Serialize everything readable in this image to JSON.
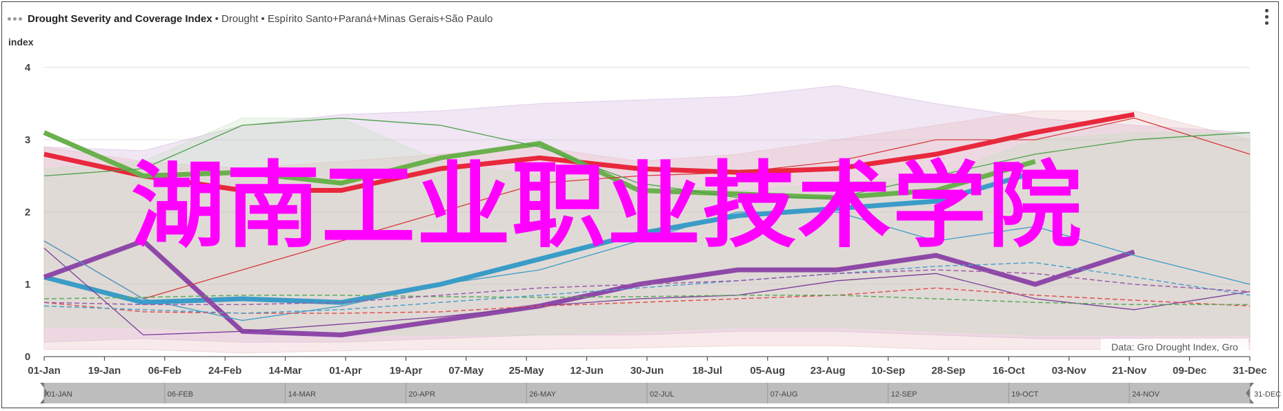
{
  "header": {
    "title": "Drought Severity and Coverage Index",
    "subtitle": "• Drought • Espírito Santo+Paraná+Minas Gerais+São Paulo"
  },
  "credit": "Data: Gro Drought Index, Gro",
  "watermark": "湖南工业职业技术学院",
  "chart_data": {
    "type": "line",
    "title": "Drought Severity and Coverage Index",
    "ylabel": "index",
    "xlabel": "",
    "ylim": [
      0,
      4
    ],
    "yticks": [
      0,
      1,
      2,
      3,
      4
    ],
    "grid": true,
    "xticks": [
      "01-Jan",
      "19-Jan",
      "06-Feb",
      "24-Feb",
      "14-Mar",
      "01-Apr",
      "19-Apr",
      "07-May",
      "25-May",
      "12-Jun",
      "30-Jun",
      "18-Jul",
      "05-Aug",
      "23-Aug",
      "10-Sep",
      "28-Sep",
      "16-Oct",
      "03-Nov",
      "21-Nov",
      "09-Dec",
      "31-Dec"
    ],
    "navigator_labels": [
      "01-JAN",
      "06-FEB",
      "14-MAR",
      "20-APR",
      "26-MAY",
      "02-JUL",
      "07-AUG",
      "12-SEP",
      "19-OCT",
      "24-NOV",
      "31-DEC"
    ],
    "x_day_of_year": [
      0,
      30,
      60,
      90,
      120,
      150,
      180,
      210,
      240,
      270,
      300,
      330,
      365
    ],
    "bands": [
      {
        "color": "#c9a6d9",
        "upper": [
          2.9,
          2.85,
          3.2,
          3.35,
          3.4,
          3.5,
          3.55,
          3.6,
          3.75,
          3.5,
          3.3,
          3.2,
          3.1
        ],
        "lower": [
          0.2,
          0.25,
          0.2,
          0.2,
          0.25,
          0.3,
          0.3,
          0.35,
          0.35,
          0.3,
          0.25,
          0.25,
          0.2
        ]
      },
      {
        "color": "#e7b3b3",
        "upper": [
          2.9,
          2.7,
          2.6,
          2.7,
          2.8,
          2.9,
          2.7,
          2.8,
          3.0,
          3.2,
          3.4,
          3.4,
          3.0
        ],
        "lower": [
          0.1,
          0.1,
          0.05,
          0.08,
          0.1,
          0.1,
          0.12,
          0.15,
          0.15,
          0.1,
          0.1,
          0.1,
          0.1
        ]
      },
      {
        "color": "#bfe0b8",
        "upper": [
          2.6,
          2.7,
          3.3,
          3.3,
          2.7,
          2.5,
          2.4,
          2.3,
          2.4,
          2.5,
          3.0,
          3.1,
          3.1
        ],
        "lower": [
          0.4,
          0.4,
          0.35,
          0.3,
          0.3,
          0.3,
          0.35,
          0.4,
          0.4,
          0.35,
          0.3,
          0.3,
          0.3
        ]
      }
    ],
    "series": [
      {
        "color": "#e8283c",
        "style": "thick",
        "values": [
          2.8,
          2.5,
          2.3,
          2.3,
          2.6,
          2.75,
          2.6,
          2.55,
          2.6,
          2.8,
          3.1,
          3.35,
          null
        ]
      },
      {
        "color": "#6ab04c",
        "style": "thick",
        "values": [
          3.1,
          2.5,
          2.55,
          2.4,
          2.75,
          2.95,
          2.3,
          2.25,
          2.2,
          2.3,
          2.7,
          null,
          null
        ]
      },
      {
        "color": "#3a9cc7",
        "style": "thick",
        "values": [
          1.1,
          0.75,
          0.8,
          0.75,
          1.0,
          1.35,
          1.7,
          1.95,
          2.05,
          2.15,
          2.55,
          null,
          null
        ]
      },
      {
        "color": "#8e49a8",
        "style": "thick",
        "values": [
          1.1,
          1.6,
          0.35,
          0.3,
          0.5,
          0.7,
          1.0,
          1.2,
          1.2,
          1.4,
          1.0,
          1.45,
          null
        ]
      },
      {
        "color": "#d63a3a",
        "style": "thin",
        "values": [
          1.6,
          0.8,
          1.2,
          1.6,
          2.0,
          2.4,
          2.5,
          2.55,
          2.7,
          3.0,
          3.0,
          3.3,
          2.8
        ]
      },
      {
        "color": "#4aa04a",
        "style": "thin",
        "values": [
          2.5,
          2.6,
          3.2,
          3.3,
          3.2,
          2.9,
          2.4,
          2.2,
          2.2,
          2.5,
          2.8,
          3.0,
          3.1
        ]
      },
      {
        "color": "#3a9cc7",
        "style": "thin",
        "values": [
          1.6,
          0.8,
          0.5,
          0.7,
          1.0,
          1.2,
          1.6,
          2.0,
          2.0,
          1.6,
          1.8,
          1.4,
          1.0
        ]
      },
      {
        "color": "#7a3d9a",
        "style": "thin",
        "values": [
          1.5,
          0.3,
          0.35,
          0.45,
          0.55,
          0.7,
          0.8,
          0.85,
          1.05,
          1.15,
          0.8,
          0.65,
          0.9
        ]
      },
      {
        "color": "#e05050",
        "style": "dash",
        "values": [
          0.75,
          0.62,
          0.6,
          0.6,
          0.62,
          0.7,
          0.75,
          0.8,
          0.85,
          0.95,
          0.85,
          0.78,
          0.7
        ]
      },
      {
        "color": "#5aaa5a",
        "style": "dash",
        "values": [
          0.8,
          0.82,
          0.85,
          0.85,
          0.83,
          0.82,
          0.83,
          0.85,
          0.85,
          0.8,
          0.75,
          0.72,
          0.72
        ]
      },
      {
        "color": "#4aa0cc",
        "style": "dash",
        "values": [
          0.7,
          0.65,
          0.6,
          0.65,
          0.75,
          0.85,
          0.95,
          1.05,
          1.15,
          1.25,
          1.3,
          1.1,
          0.85
        ]
      },
      {
        "color": "#9a5aaa",
        "style": "dash",
        "values": [
          0.75,
          0.72,
          0.72,
          0.75,
          0.85,
          0.95,
          1.0,
          1.05,
          1.15,
          1.2,
          1.15,
          1.0,
          0.9
        ]
      }
    ]
  }
}
